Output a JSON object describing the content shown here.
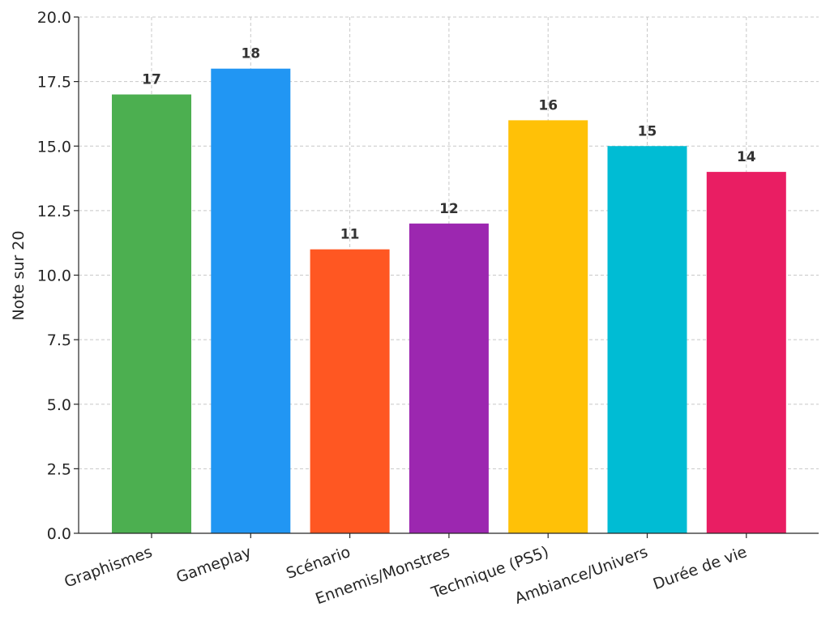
{
  "chart_data": {
    "type": "bar",
    "title": "",
    "xlabel": "",
    "ylabel": "Note sur 20",
    "categories": [
      "Graphismes",
      "Gameplay",
      "Scénario",
      "Ennemis/Monstres",
      "Technique (PS5)",
      "Ambiance/Univers",
      "Durée de vie"
    ],
    "values": [
      17,
      18,
      11,
      12,
      16,
      15,
      14
    ],
    "colors": [
      "#4CAF50",
      "#2196F3",
      "#FF5722",
      "#9C27B0",
      "#FFC107",
      "#00BCD4",
      "#E91E63"
    ],
    "data_labels": [
      "17",
      "18",
      "11",
      "12",
      "16",
      "15",
      "14"
    ],
    "ylim": [
      0,
      20
    ],
    "yticks": [
      0,
      2.5,
      5,
      7.5,
      10,
      12.5,
      15,
      17.5,
      20
    ],
    "ytick_labels": [
      "0.0",
      "2.5",
      "5.0",
      "7.5",
      "10.0",
      "12.5",
      "15.0",
      "17.5",
      "20.0"
    ],
    "grid": true,
    "x_tick_rotation": "rotated ~20°"
  }
}
